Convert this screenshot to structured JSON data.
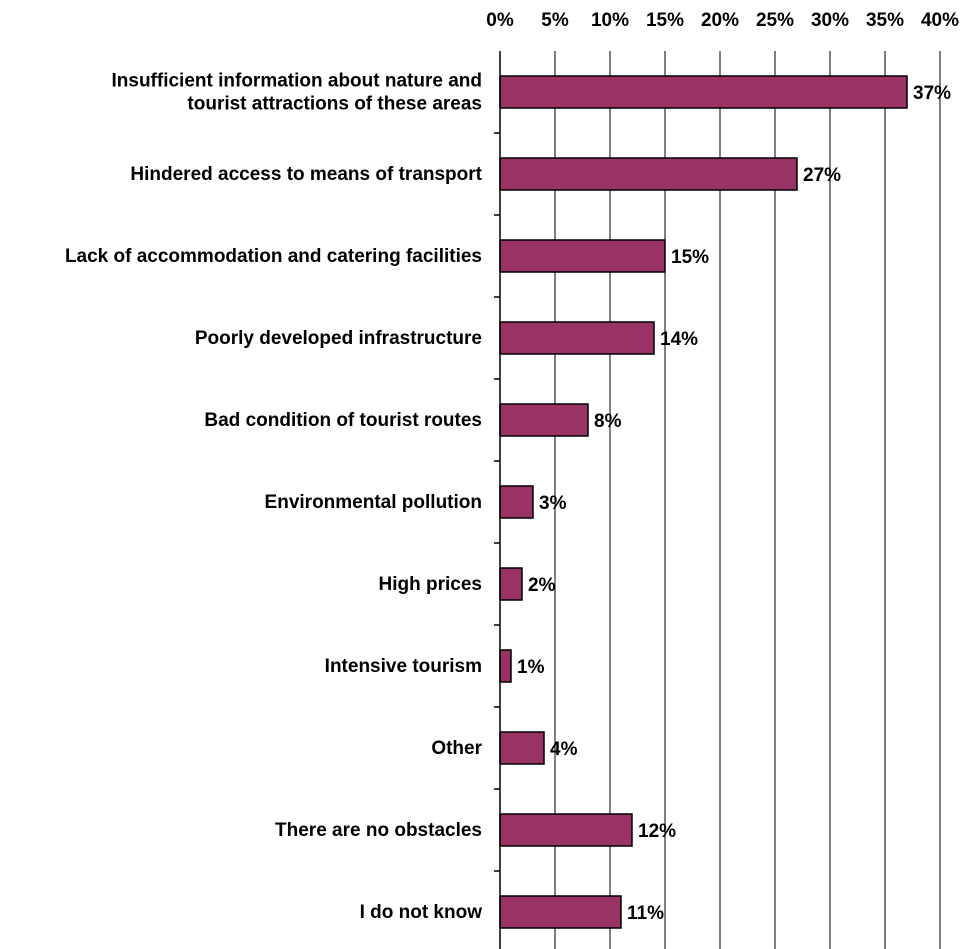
{
  "chart_data": {
    "type": "bar",
    "orientation": "horizontal",
    "title": "",
    "xlabel": "",
    "ylabel": "",
    "xlim": [
      0,
      40
    ],
    "x_ticks": [
      "0%",
      "5%",
      "10%",
      "15%",
      "20%",
      "25%",
      "30%",
      "35%",
      "40%"
    ],
    "x_axis_position": "top",
    "grid": true,
    "legend": "none",
    "categories": [
      [
        "Insufficient information about nature and",
        "tourist attractions of these areas"
      ],
      [
        "Hindered access to means of transport"
      ],
      [
        "Lack of accommodation and catering facilities"
      ],
      [
        "Poorly developed infrastructure"
      ],
      [
        "Bad condition of tourist routes"
      ],
      [
        "Environmental pollution"
      ],
      [
        "High prices"
      ],
      [
        "Intensive tourism"
      ],
      [
        "Other"
      ],
      [
        "There are no obstacles"
      ],
      [
        "I do not know"
      ]
    ],
    "values": [
      37,
      27,
      15,
      14,
      8,
      3,
      2,
      1,
      4,
      12,
      11
    ],
    "data_labels": [
      "37%",
      "27%",
      "15%",
      "14%",
      "8%",
      "3%",
      "2%",
      "1%",
      "4%",
      "12%",
      "11%"
    ],
    "colors": {
      "bar": "#993366",
      "gridline": "#000000",
      "background": "#ffffff"
    }
  }
}
